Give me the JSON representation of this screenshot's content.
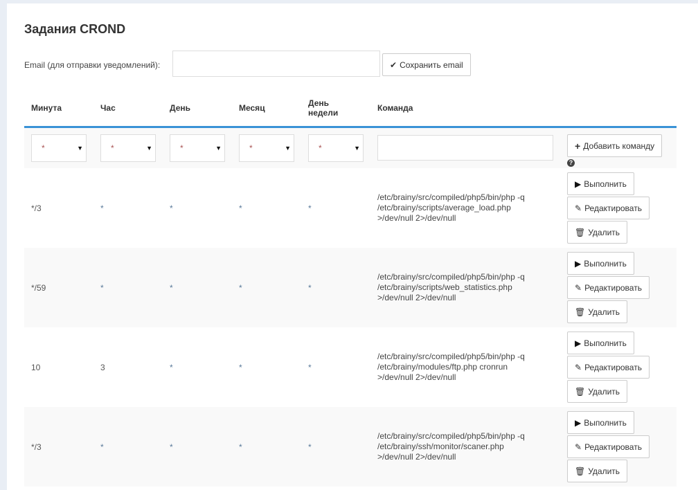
{
  "title": "Задания CROND",
  "email": {
    "label": "Email (для отправки уведомлений):",
    "value": "",
    "save_label": "Сохранить email"
  },
  "columns": [
    "Минута",
    "Час",
    "День",
    "Месяц",
    "День недели",
    "Команда"
  ],
  "filter": {
    "selects": [
      "*",
      "*",
      "*",
      "*",
      "*"
    ],
    "command": "",
    "add_label": "Добавить команду"
  },
  "actions": {
    "run": "Выполнить",
    "edit": "Редактировать",
    "delete": "Удалить"
  },
  "rows": [
    {
      "minute": "*/3",
      "hour": "*",
      "day": "*",
      "month": "*",
      "weekday": "*",
      "command": [
        "/etc/brainy/src/compiled/php5/bin/php -q",
        "/etc/brainy/scripts/average_load.php",
        ">/dev/null 2>/dev/null"
      ]
    },
    {
      "minute": "*/59",
      "hour": "*",
      "day": "*",
      "month": "*",
      "weekday": "*",
      "command": [
        "/etc/brainy/src/compiled/php5/bin/php -q",
        "/etc/brainy/scripts/web_statistics.php",
        ">/dev/null 2>/dev/null"
      ]
    },
    {
      "minute": "10",
      "hour": "3",
      "day": "*",
      "month": "*",
      "weekday": "*",
      "command": [
        "/etc/brainy/src/compiled/php5/bin/php -q",
        "/etc/brainy/modules/ftp.php cronrun",
        ">/dev/null 2>/dev/null"
      ]
    },
    {
      "minute": "*/3",
      "hour": "*",
      "day": "*",
      "month": "*",
      "weekday": "*",
      "command": [
        "/etc/brainy/src/compiled/php5/bin/php -q",
        "/etc/brainy/ssh/monitor/scaner.php",
        ">/dev/null 2>/dev/null"
      ]
    }
  ]
}
